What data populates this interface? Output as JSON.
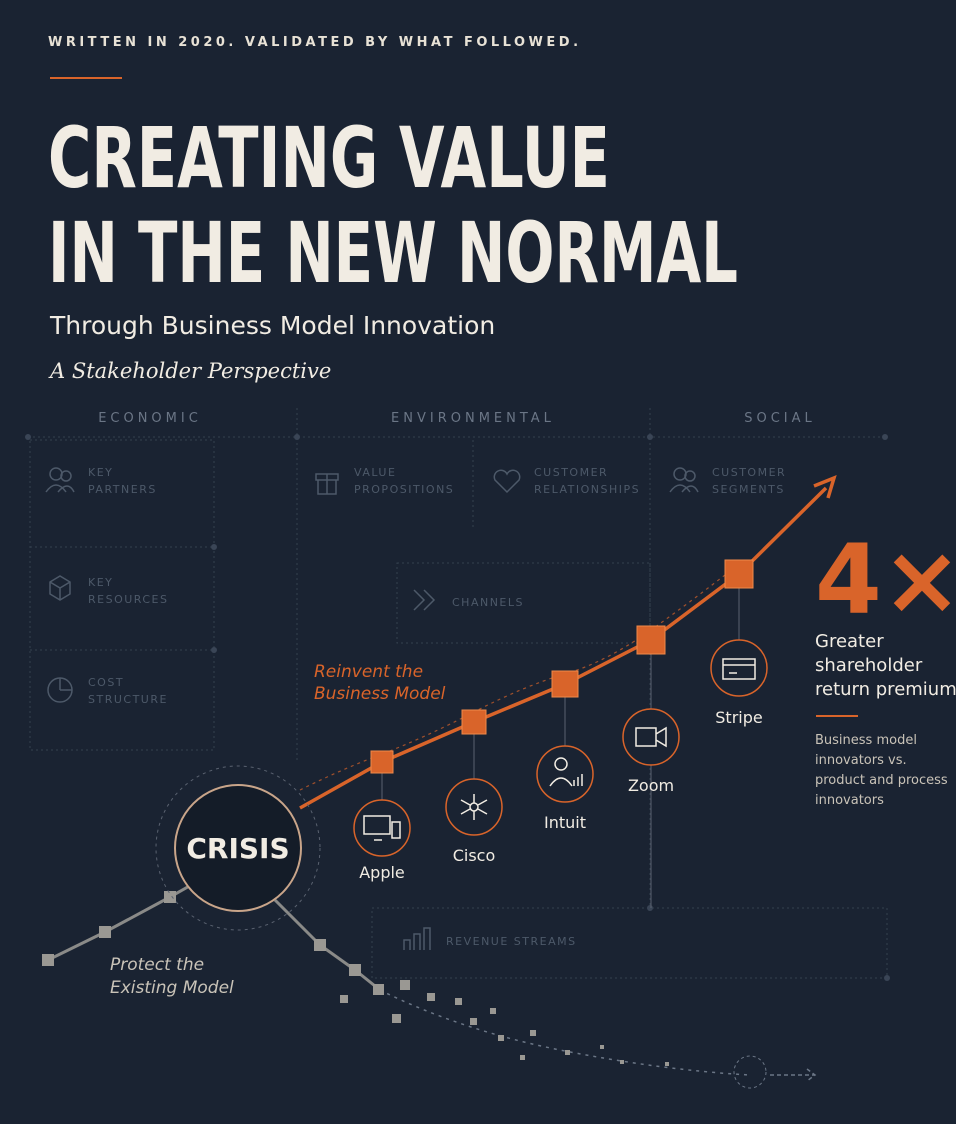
{
  "header": {
    "kicker": "WRITTEN IN 2020. VALIDATED BY WHAT FOLLOWED.",
    "title": [
      "CREATING VALUE",
      "IN THE NEW NORMAL"
    ],
    "subtitle": "Through Business Model Innovation",
    "tagline": "A Stakeholder Perspective"
  },
  "canvas": {
    "columns": [
      "ECONOMIC",
      "ENVIRONMENTAL",
      "SOCIAL"
    ],
    "blocks": [
      [
        "KEY",
        "PARTNERS"
      ],
      [
        "KEY",
        "RESOURCES"
      ],
      [
        "COST",
        "STRUCTURE"
      ],
      [
        "VALUE",
        "PROPOSITIONS"
      ],
      [
        "CUSTOMER",
        "RELATIONSHIPS"
      ],
      [
        "CUSTOMER",
        "SEGMENTS"
      ],
      [
        "CHANNELS"
      ],
      [
        "REVENUE STREAMS"
      ]
    ]
  },
  "paths": {
    "reinvent": [
      "Reinvent the",
      "Business Model"
    ],
    "protect": [
      "Protect the",
      "Existing Model"
    ],
    "crisis": "CRISIS"
  },
  "companies": [
    "Apple",
    "Cisco",
    "Intuit",
    "Zoom",
    "Stripe"
  ],
  "stat": {
    "value": "4×",
    "label": [
      "Greater",
      "shareholder",
      "return premium"
    ],
    "note": [
      "Business model",
      "innovators vs.",
      "product and process",
      "innovators"
    ]
  }
}
